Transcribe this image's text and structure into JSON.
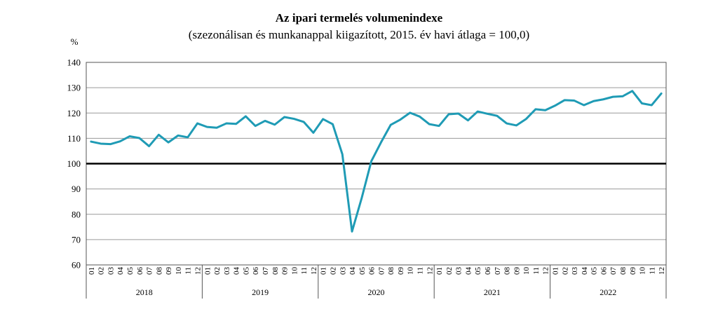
{
  "chart_data": {
    "type": "line",
    "title": "Az ipari termelés volumenindexe",
    "subtitle": "(szezonálisan és munkanappal kiigazított, 2015. év havi átlaga = 100,0)",
    "ylabel": "%",
    "ylim": [
      60,
      140
    ],
    "yticks": [
      "60",
      "70",
      "80",
      "90",
      "100",
      "110",
      "120",
      "130",
      "140"
    ],
    "grid": true,
    "reference_line": 100,
    "months": [
      "01",
      "02",
      "03",
      "04",
      "05",
      "06",
      "07",
      "08",
      "09",
      "10",
      "11",
      "12"
    ],
    "years": [
      "2018",
      "2019",
      "2020",
      "2021",
      "2022"
    ],
    "line_color": "#1f9bb5",
    "series": [
      {
        "values": [
          108.7,
          107.9,
          107.7,
          108.8,
          110.8,
          110.1,
          106.9,
          111.4,
          108.4,
          111.1,
          110.4,
          115.9,
          114.5,
          114.2,
          115.9,
          115.7,
          118.7,
          114.9,
          116.9,
          115.4,
          118.4,
          117.7,
          116.5,
          112.2,
          117.6,
          115.6,
          103.7,
          73.2,
          86.4,
          101.0,
          108.4,
          115.3,
          117.4,
          120.1,
          118.6,
          115.6,
          114.9,
          119.5,
          119.8,
          117.1,
          120.6,
          119.7,
          118.9,
          115.9,
          115.1,
          117.6,
          121.5,
          121.1,
          122.9,
          125.1,
          124.9,
          123.1,
          124.7,
          125.4,
          126.4,
          126.6,
          128.7,
          123.8,
          123.1,
          127.7
        ]
      }
    ]
  }
}
